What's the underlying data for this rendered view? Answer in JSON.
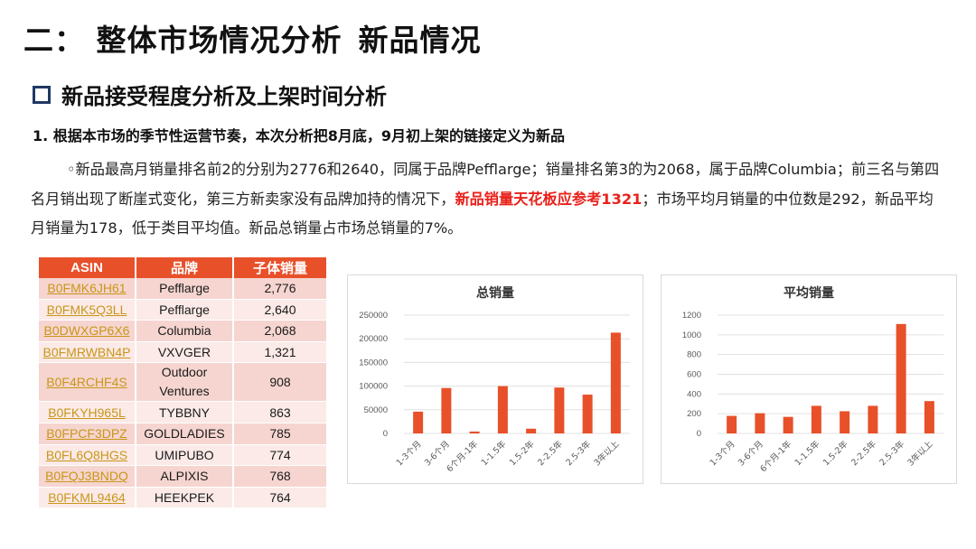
{
  "header": {
    "title_part1": "二：",
    "title_part2": "整体市场情况分析",
    "title_part3": "新品情况"
  },
  "section": {
    "heading": "新品接受程度分析及上架时间分析",
    "icon": "checkbox-square-icon",
    "icon_color": "#1f3864"
  },
  "subheading": "1. 根据本市场的季节性运营节奏，本次分析把8月底，9月初上架的链接定义为新品",
  "paragraph": {
    "text_before": "◦新品最高月销量排名前2的分别为2776和2640，同属于品牌Pefflarge；销量排名第3的为2068，属于品牌Columbia；前三名与第四名月销出现了断崖式变化，第三方新卖家没有品牌加持的情况下，",
    "highlight": "新品销量天花板应参考1321",
    "text_after": "；市场平均月销量的中位数是292，新品平均月销量为178，低于类目平均值。新品总销量占市场总销量的7%。",
    "highlight_color": "#e8221b"
  },
  "table": {
    "headers": [
      "ASIN",
      "品牌",
      "子体销量"
    ],
    "header_color": "#e8502a",
    "rows": [
      {
        "asin": "B0FMK6JH61",
        "brand": "Pefflarge",
        "sales": "2,776"
      },
      {
        "asin": "B0FMK5Q3LL",
        "brand": "Pefflarge",
        "sales": "2,640"
      },
      {
        "asin": "B0DWXGP6X6",
        "brand": "Columbia",
        "sales": "2,068"
      },
      {
        "asin": "B0FMRWBN4P",
        "brand": "VXVGER",
        "sales": "1,321"
      },
      {
        "asin": "B0F4RCHF4S",
        "brand": "Outdoor Ventures",
        "sales": "908"
      },
      {
        "asin": "B0FKYH965L",
        "brand": "TYBBNY",
        "sales": "863"
      },
      {
        "asin": "B0FPCF3DPZ",
        "brand": "GOLDLADIES",
        "sales": "785"
      },
      {
        "asin": "B0FL6Q8HGS",
        "brand": "UMIPUBO",
        "sales": "774"
      },
      {
        "asin": "B0FQJ3BNDQ",
        "brand": "ALPIXIS",
        "sales": "768"
      },
      {
        "asin": "B0FKML9464",
        "brand": "HEEKPEK",
        "sales": "764"
      }
    ]
  },
  "chart_data": [
    {
      "type": "bar",
      "title": "总销量",
      "categories": [
        "1-3个月",
        "3-6个月",
        "6个月-1年",
        "1-1.5年",
        "1.5-2年",
        "2-2.5年",
        "2.5-3年",
        "3年以上"
      ],
      "values": [
        46000,
        96000,
        4000,
        100000,
        10000,
        97000,
        82000,
        213000
      ],
      "ylim": [
        0,
        250000
      ],
      "yticks": [
        "0",
        "50000",
        "100000",
        "150000",
        "200000",
        "250000"
      ],
      "bar_color": "#e8502a",
      "grid": true
    },
    {
      "type": "bar",
      "title": "平均销量",
      "categories": [
        "1-3个月",
        "3-6个月",
        "6个月-1年",
        "1-1.5年",
        "1.5-2年",
        "2-2.5年",
        "2.5-3年",
        "3年以上"
      ],
      "values": [
        178,
        205,
        168,
        280,
        225,
        280,
        1110,
        328
      ],
      "ylim": [
        0,
        1200
      ],
      "yticks": [
        "0",
        "200",
        "400",
        "600",
        "800",
        "1000",
        "1200"
      ],
      "bar_color": "#e8502a",
      "grid": true
    }
  ]
}
